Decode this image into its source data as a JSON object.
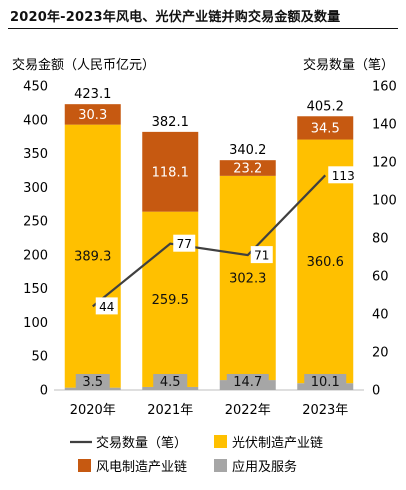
{
  "chart_data": {
    "type": "bar",
    "title": "2020年-2023年风电、光伏产业链并购交易金额及数量",
    "categories": [
      "2020年",
      "2021年",
      "2022年",
      "2023年"
    ],
    "ylabel_left": "交易金额（人民币亿元）",
    "ylabel_right": "交易数量（笔）",
    "ylim_left": [
      0,
      450
    ],
    "yticks_left": [
      "0",
      "50",
      "100",
      "150",
      "200",
      "250",
      "300",
      "350",
      "400",
      "450"
    ],
    "ylim_right": [
      0,
      160
    ],
    "yticks_right": [
      "0",
      "20",
      "40",
      "60",
      "80",
      "100",
      "120",
      "140",
      "160"
    ],
    "stacked": true,
    "series": [
      {
        "name": "应用及服务",
        "values": [
          3.5,
          4.5,
          14.7,
          10.1
        ],
        "labels": [
          "3.5",
          "4.5",
          "14.7",
          "10.1"
        ],
        "color": "#a6a6a6"
      },
      {
        "name": "光伏制造产业链",
        "values": [
          389.3,
          259.5,
          302.3,
          360.6
        ],
        "labels": [
          "389.3",
          "259.5",
          "302.3",
          "360.6"
        ],
        "color": "#ffc000"
      },
      {
        "name": "风电制造产业链",
        "values": [
          30.3,
          118.1,
          23.2,
          34.5
        ],
        "labels": [
          "30.3",
          "118.1",
          "23.2",
          "34.5"
        ],
        "color": "#c65911"
      }
    ],
    "totals": [
      "423.1",
      "382.1",
      "340.2",
      "405.2"
    ],
    "line_series": {
      "name": "交易数量（笔）",
      "values": [
        44,
        77,
        71,
        113
      ],
      "labels": [
        "44",
        "77",
        "71",
        "113"
      ],
      "color": "#404040",
      "axis": "right"
    },
    "legend": {
      "placement": "bottom",
      "items": [
        {
          "label": "交易数量（笔）",
          "kind": "line",
          "color": "#404040"
        },
        {
          "label": "光伏制造产业链",
          "kind": "box",
          "color": "#ffc000"
        },
        {
          "label": "风电制造产业链",
          "kind": "box",
          "color": "#c65911"
        },
        {
          "label": "应用及服务",
          "kind": "box",
          "color": "#a6a6a6"
        }
      ]
    }
  }
}
